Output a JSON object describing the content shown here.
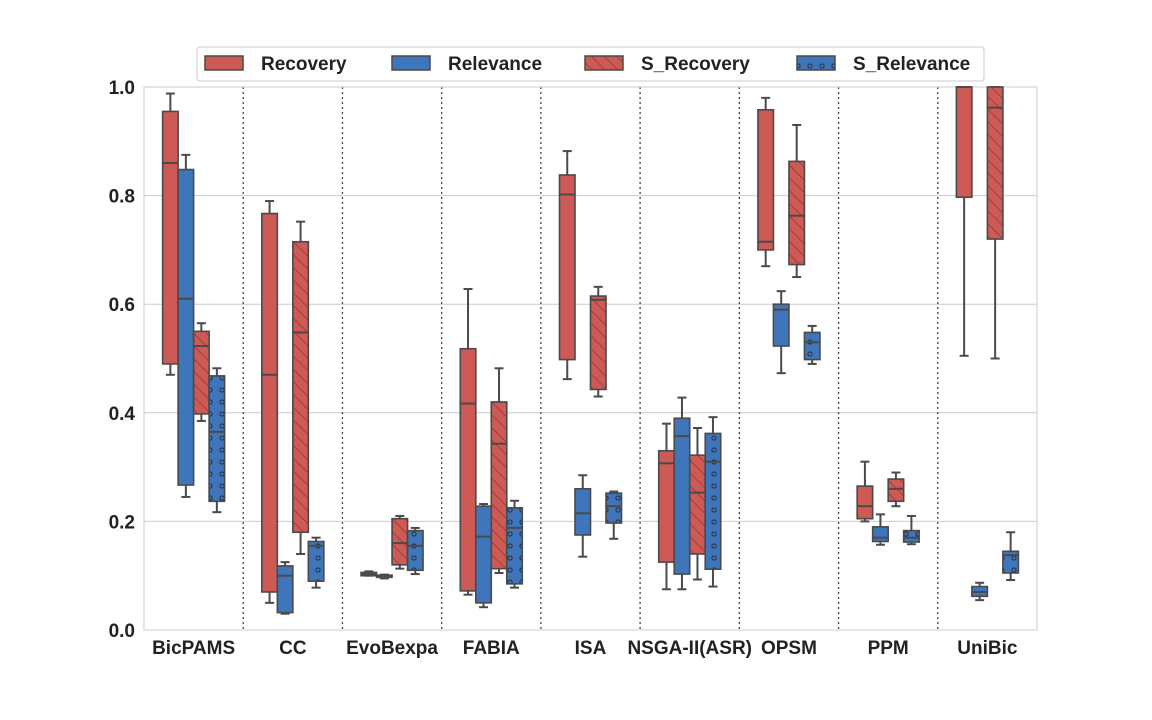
{
  "chart_data": {
    "type": "box",
    "title": "",
    "xlabel": "",
    "ylabel": "",
    "ylim": [
      0.0,
      1.0
    ],
    "yticks": [
      "0.0",
      "0.2",
      "0.4",
      "0.6",
      "0.8",
      "1.0"
    ],
    "grid": "horizontal",
    "legend_position": "top",
    "categories": [
      "BicPAMS",
      "CC",
      "EvoBexpa",
      "FABIA",
      "ISA",
      "NSGA-II(ASR)",
      "OPSM",
      "PPM",
      "UniBic"
    ],
    "series": [
      {
        "name": "Recovery",
        "color": "#cd5a55",
        "pattern": "solid",
        "boxes": [
          {
            "whisker_low": 0.47,
            "q1": 0.49,
            "median": 0.86,
            "q3": 0.955,
            "whisker_high": 0.988
          },
          {
            "whisker_low": 0.05,
            "q1": 0.07,
            "median": 0.47,
            "q3": 0.767,
            "whisker_high": 0.79
          },
          {
            "whisker_low": 0.1,
            "q1": 0.1,
            "median": 0.103,
            "q3": 0.106,
            "whisker_high": 0.108
          },
          {
            "whisker_low": 0.065,
            "q1": 0.072,
            "median": 0.417,
            "q3": 0.518,
            "whisker_high": 0.628
          },
          {
            "whisker_low": 0.462,
            "q1": 0.498,
            "median": 0.802,
            "q3": 0.838,
            "whisker_high": 0.882
          },
          {
            "whisker_low": 0.075,
            "q1": 0.125,
            "median": 0.307,
            "q3": 0.33,
            "whisker_high": 0.38
          },
          {
            "whisker_low": 0.67,
            "q1": 0.7,
            "median": 0.715,
            "q3": 0.958,
            "whisker_high": 0.98
          },
          {
            "whisker_low": 0.2,
            "q1": 0.205,
            "median": 0.228,
            "q3": 0.265,
            "whisker_high": 0.31
          },
          {
            "whisker_low": 0.505,
            "q1": 0.797,
            "median": 1.0,
            "q3": 1.0,
            "whisker_high": 1.0
          }
        ]
      },
      {
        "name": "Relevance",
        "color": "#3f76bb",
        "pattern": "solid",
        "boxes": [
          {
            "whisker_low": 0.245,
            "q1": 0.267,
            "median": 0.61,
            "q3": 0.848,
            "whisker_high": 0.875
          },
          {
            "whisker_low": 0.03,
            "q1": 0.032,
            "median": 0.1,
            "q3": 0.118,
            "whisker_high": 0.125
          },
          {
            "whisker_low": 0.095,
            "q1": 0.097,
            "median": 0.099,
            "q3": 0.101,
            "whisker_high": 0.102
          },
          {
            "whisker_low": 0.042,
            "q1": 0.05,
            "median": 0.172,
            "q3": 0.228,
            "whisker_high": 0.232
          },
          {
            "whisker_low": 0.135,
            "q1": 0.175,
            "median": 0.215,
            "q3": 0.26,
            "whisker_high": 0.285
          },
          {
            "whisker_low": 0.075,
            "q1": 0.103,
            "median": 0.357,
            "q3": 0.39,
            "whisker_high": 0.428
          },
          {
            "whisker_low": 0.473,
            "q1": 0.523,
            "median": 0.59,
            "q3": 0.6,
            "whisker_high": 0.624
          },
          {
            "whisker_low": 0.157,
            "q1": 0.163,
            "median": 0.17,
            "q3": 0.19,
            "whisker_high": 0.213
          },
          {
            "whisker_low": 0.055,
            "q1": 0.062,
            "median": 0.07,
            "q3": 0.08,
            "whisker_high": 0.087
          }
        ]
      },
      {
        "name": "S_Recovery",
        "color": "#cd5a55",
        "pattern": "hatch",
        "boxes": [
          {
            "whisker_low": 0.385,
            "q1": 0.398,
            "median": 0.523,
            "q3": 0.55,
            "whisker_high": 0.565
          },
          {
            "whisker_low": 0.14,
            "q1": 0.18,
            "median": 0.548,
            "q3": 0.715,
            "whisker_high": 0.752
          },
          {
            "whisker_low": 0.113,
            "q1": 0.12,
            "median": 0.16,
            "q3": 0.205,
            "whisker_high": 0.21
          },
          {
            "whisker_low": 0.105,
            "q1": 0.113,
            "median": 0.343,
            "q3": 0.42,
            "whisker_high": 0.482
          },
          {
            "whisker_low": 0.43,
            "q1": 0.443,
            "median": 0.608,
            "q3": 0.615,
            "whisker_high": 0.632
          },
          {
            "whisker_low": 0.093,
            "q1": 0.14,
            "median": 0.253,
            "q3": 0.322,
            "whisker_high": 0.372
          },
          {
            "whisker_low": 0.65,
            "q1": 0.673,
            "median": 0.763,
            "q3": 0.863,
            "whisker_high": 0.93
          },
          {
            "whisker_low": 0.228,
            "q1": 0.237,
            "median": 0.26,
            "q3": 0.278,
            "whisker_high": 0.29
          },
          {
            "whisker_low": 0.5,
            "q1": 0.72,
            "median": 0.962,
            "q3": 1.0,
            "whisker_high": 1.0
          }
        ]
      },
      {
        "name": "S_Relevance",
        "color": "#3f76bb",
        "pattern": "dots",
        "boxes": [
          {
            "whisker_low": 0.217,
            "q1": 0.237,
            "median": 0.365,
            "q3": 0.468,
            "whisker_high": 0.482
          },
          {
            "whisker_low": 0.078,
            "q1": 0.09,
            "median": 0.155,
            "q3": 0.163,
            "whisker_high": 0.17
          },
          {
            "whisker_low": 0.103,
            "q1": 0.11,
            "median": 0.155,
            "q3": 0.183,
            "whisker_high": 0.188
          },
          {
            "whisker_low": 0.078,
            "q1": 0.085,
            "median": 0.188,
            "q3": 0.225,
            "whisker_high": 0.238
          },
          {
            "whisker_low": 0.168,
            "q1": 0.197,
            "median": 0.228,
            "q3": 0.252,
            "whisker_high": 0.255
          },
          {
            "whisker_low": 0.08,
            "q1": 0.112,
            "median": 0.31,
            "q3": 0.362,
            "whisker_high": 0.392
          },
          {
            "whisker_low": 0.49,
            "q1": 0.498,
            "median": 0.53,
            "q3": 0.548,
            "whisker_high": 0.56
          },
          {
            "whisker_low": 0.158,
            "q1": 0.162,
            "median": 0.17,
            "q3": 0.183,
            "whisker_high": 0.21
          },
          {
            "whisker_low": 0.092,
            "q1": 0.105,
            "median": 0.138,
            "q3": 0.145,
            "whisker_high": 0.18
          }
        ]
      }
    ]
  }
}
